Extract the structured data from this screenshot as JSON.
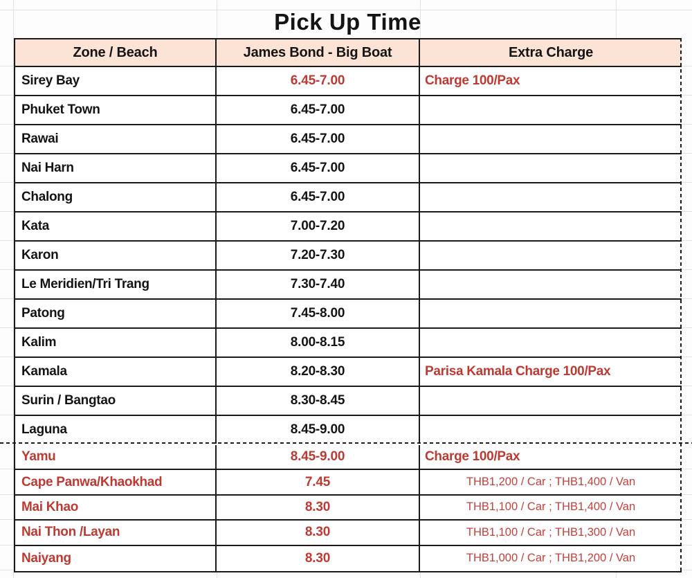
{
  "title": "Pick Up Time",
  "colors": {
    "ink": "#141414",
    "red": "#bd3a32",
    "red_light": "#c4403b",
    "header_bg": "#fbe3d5",
    "border": "#1a1a1a",
    "gridline": "#e2e2e2"
  },
  "table": {
    "headers": [
      "Zone / Beach",
      "James Bond - Big Boat",
      "Extra Charge"
    ],
    "rows": [
      {
        "zone": "Sirey Bay",
        "time": "6.45-7.00",
        "extra": "Charge 100/Pax"
      },
      {
        "zone": "Phuket Town",
        "time": "6.45-7.00",
        "extra": ""
      },
      {
        "zone": "Rawai",
        "time": "6.45-7.00",
        "extra": ""
      },
      {
        "zone": "Nai Harn",
        "time": "6.45-7.00",
        "extra": ""
      },
      {
        "zone": "Chalong",
        "time": "6.45-7.00",
        "extra": ""
      },
      {
        "zone": "Kata",
        "time": "7.00-7.20",
        "extra": ""
      },
      {
        "zone": "Karon",
        "time": "7.20-7.30",
        "extra": ""
      },
      {
        "zone": "Le Meridien/Tri Trang",
        "time": "7.30-7.40",
        "extra": ""
      },
      {
        "zone": "Patong",
        "time": "7.45-8.00",
        "extra": ""
      },
      {
        "zone": "Kalim",
        "time": "8.00-8.15",
        "extra": ""
      },
      {
        "zone": "Kamala",
        "time": "8.20-8.30",
        "extra": "Parisa Kamala Charge 100/Pax"
      },
      {
        "zone": "Surin / Bangtao",
        "time": "8.30-8.45",
        "extra": ""
      },
      {
        "zone": "Laguna",
        "time": "8.45-9.00",
        "extra": ""
      },
      {
        "zone": "Yamu",
        "time": "8.45-9.00",
        "extra": "Charge 100/Pax"
      },
      {
        "zone": "Cape Panwa/Khaokhad",
        "time": "7.45",
        "extra": "THB1,200 / Car ; THB1,400 / Van"
      },
      {
        "zone": "Mai Khao",
        "time": "8.30",
        "extra": "THB1,100 / Car ; THB1,400 / Van"
      },
      {
        "zone": "Nai Thon /Layan",
        "time": "8.30",
        "extra": "THB1,100 / Car ; THB1,300 / Van"
      },
      {
        "zone": "Naiyang",
        "time": "8.30",
        "extra": "THB1,000 / Car ; THB1,200 / Van"
      }
    ]
  }
}
